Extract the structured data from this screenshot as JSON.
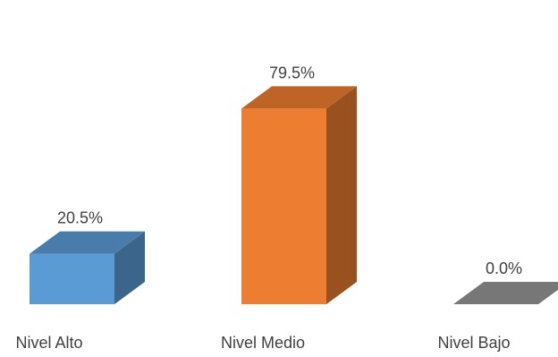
{
  "chart_data": {
    "type": "bar",
    "title": "",
    "xlabel": "",
    "ylabel": "",
    "categories": [
      "Nivel Alto",
      "Nivel Medio",
      "Nivel Bajo"
    ],
    "values": [
      20.5,
      79.5,
      0.0
    ],
    "data_labels": [
      "20.5%",
      "79.5%",
      "0.0%"
    ],
    "ylim": [
      0,
      100
    ],
    "grid": false,
    "legend": "none",
    "style": "3d-column",
    "colors": [
      "#5b9bd5",
      "#ed7d31",
      "#a5a5a5"
    ]
  }
}
